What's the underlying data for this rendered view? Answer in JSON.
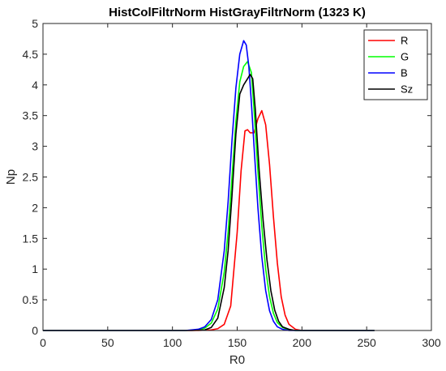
{
  "chart_data": {
    "type": "line",
    "title": "HistColFiltrNorm  HistGrayFiltrNorm (1323 K)",
    "xlabel": "R0",
    "ylabel": "Np",
    "xlim": [
      0,
      300
    ],
    "ylim": [
      0,
      5
    ],
    "xticks": [
      0,
      50,
      100,
      150,
      200,
      250,
      300
    ],
    "yticks": [
      0,
      0.5,
      1,
      1.5,
      2,
      2.5,
      3,
      3.5,
      4,
      4.5,
      5
    ],
    "grid": false,
    "legend_position": "top-right",
    "series": [
      {
        "name": "R",
        "color": "#ff0000",
        "x": [
          0,
          120,
          130,
          135,
          140,
          145,
          150,
          153,
          156,
          158,
          160,
          163,
          166,
          169,
          172,
          175,
          178,
          181,
          184,
          187,
          190,
          195,
          200,
          256
        ],
        "y": [
          0,
          0,
          0.01,
          0.03,
          0.1,
          0.4,
          1.6,
          2.6,
          3.25,
          3.27,
          3.22,
          3.22,
          3.45,
          3.58,
          3.35,
          2.7,
          1.85,
          1.1,
          0.55,
          0.25,
          0.1,
          0.02,
          0,
          0
        ]
      },
      {
        "name": "G",
        "color": "#00ff00",
        "x": [
          0,
          110,
          120,
          125,
          130,
          135,
          140,
          143,
          146,
          149,
          152,
          155,
          158,
          161,
          163,
          166,
          169,
          172,
          175,
          178,
          181,
          185,
          190,
          195,
          200,
          256
        ],
        "y": [
          0,
          0,
          0.01,
          0.04,
          0.12,
          0.35,
          0.95,
          1.6,
          2.5,
          3.4,
          4.05,
          4.3,
          4.38,
          4.2,
          3.6,
          2.6,
          1.7,
          1.0,
          0.55,
          0.28,
          0.13,
          0.05,
          0.01,
          0,
          0,
          0
        ]
      },
      {
        "name": "B",
        "color": "#0000ff",
        "x": [
          0,
          110,
          120,
          125,
          130,
          135,
          140,
          143,
          146,
          149,
          152,
          155,
          157,
          159,
          161,
          163,
          166,
          169,
          172,
          175,
          178,
          181,
          185,
          190,
          195,
          256
        ],
        "y": [
          0,
          0,
          0.02,
          0.06,
          0.18,
          0.5,
          1.3,
          2.1,
          3.1,
          3.95,
          4.5,
          4.72,
          4.65,
          4.3,
          3.7,
          3.0,
          2.0,
          1.2,
          0.65,
          0.32,
          0.15,
          0.06,
          0.02,
          0,
          0,
          0
        ]
      },
      {
        "name": "Sz",
        "color": "#000000",
        "x": [
          0,
          115,
          125,
          130,
          135,
          140,
          143,
          146,
          149,
          152,
          155,
          158,
          160,
          162,
          164,
          167,
          170,
          173,
          176,
          179,
          182,
          185,
          190,
          195,
          200,
          256
        ],
        "y": [
          0,
          0,
          0.01,
          0.05,
          0.2,
          0.7,
          1.3,
          2.2,
          3.2,
          3.85,
          4.0,
          4.1,
          4.17,
          4.1,
          3.6,
          2.6,
          1.8,
          1.15,
          0.65,
          0.33,
          0.15,
          0.06,
          0.02,
          0,
          0,
          0
        ]
      }
    ]
  }
}
